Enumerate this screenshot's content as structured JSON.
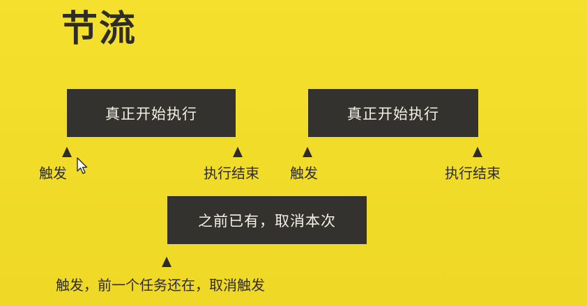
{
  "title": "节流",
  "boxes": {
    "execute_1": "真正开始执行",
    "execute_2": "真正开始执行",
    "cancel": "之前已有，取消本次"
  },
  "labels": {
    "trigger_1": "触发",
    "end_1": "执行结束",
    "trigger_2": "触发",
    "end_2": "执行结束",
    "trigger_cancel": "触发，前一个任务还在，取消触发"
  },
  "colors": {
    "background": "#f2dc2a",
    "box": "#34322e",
    "box_text": "#f4f0e6",
    "text": "#2e2c28"
  },
  "icons": {
    "cursor": "mouse-pointer-icon",
    "marker": "triangle-up-icon"
  }
}
